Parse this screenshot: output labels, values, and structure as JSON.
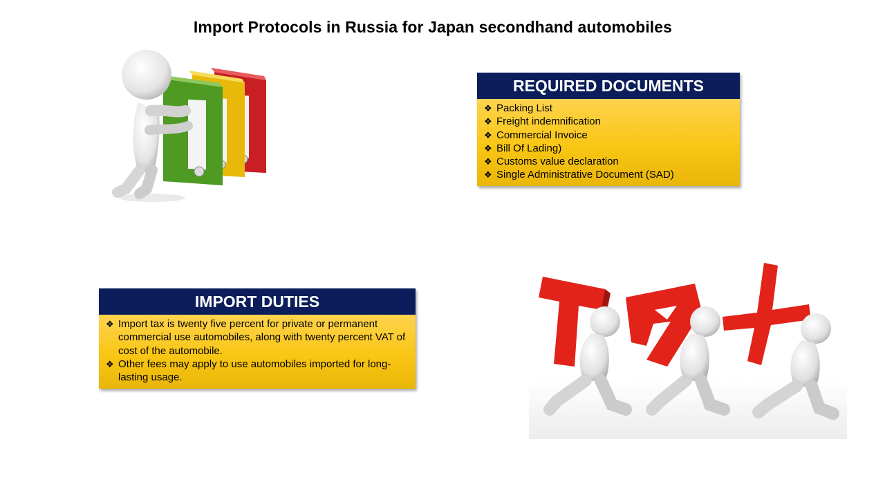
{
  "title": "Import Protocols in Russia for Japan secondhand automobiles",
  "bullet_glyph": "❖",
  "required_documents": {
    "heading": "REQUIRED DOCUMENTS",
    "items": [
      "Packing List",
      "Freight indemnification",
      "Commercial Invoice",
      "Bill Of Lading)",
      "Customs value declaration",
      "Single Administrative Document (SAD)"
    ]
  },
  "import_duties": {
    "heading": "IMPORT DUTIES",
    "items": [
      "Import tax is twenty five percent for private or permanent commercial use automobiles, along with twenty percent VAT of cost of the automobile.",
      "Other fees may apply to use automobiles imported for long-lasting usage."
    ]
  },
  "images": {
    "folders": "person-pushing-binders-illustration",
    "tax": "people-carrying-tax-letters-illustration"
  },
  "colors": {
    "header_bg": "#0b1e5b",
    "box_yellow": "#f9c614",
    "binder_green": "#5aa32a",
    "binder_yellow": "#f2c40f",
    "binder_red": "#d9262a",
    "tax_red": "#e2231a"
  }
}
